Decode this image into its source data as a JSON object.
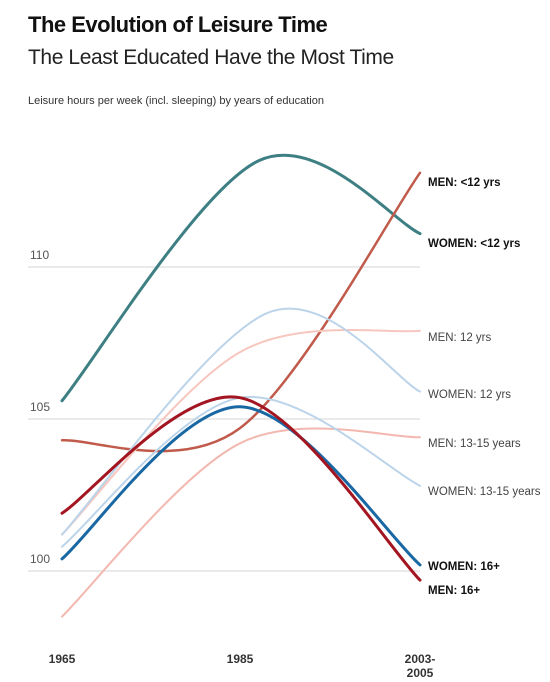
{
  "header": {
    "title": "The Evolution of Leisure Time",
    "subtitle": "The Least Educated Have the Most Time",
    "ylabel": "Leisure hours per week (incl. sleeping) by years of education"
  },
  "chart_data": {
    "type": "line",
    "title": "The Evolution of Leisure Time",
    "subtitle": "The Least Educated Have the Most Time",
    "ylabel": "Leisure hours per week (incl. sleeping) by years of education",
    "categories": [
      "1965",
      "1985",
      "2003-2005"
    ],
    "x_tick_labels": [
      [
        "1965"
      ],
      [
        "1985"
      ],
      [
        "2003-",
        "2005"
      ]
    ],
    "ylim": [
      98,
      115
    ],
    "yticks": [
      100,
      105,
      110
    ],
    "grid": true,
    "series": [
      {
        "name": "WOMEN: <12 yrs",
        "values": [
          105.6,
          113.4,
          111.1
        ],
        "peak": [
          1987,
          113.5
        ],
        "color": "#3d7f83",
        "width": 3,
        "bold": true
      },
      {
        "name": "MEN: <12 yrs",
        "values": [
          104.3,
          104.7,
          113.1
        ],
        "color": "#c05a4a",
        "width": 2.5,
        "bold": true
      },
      {
        "name": "MEN: 12 yrs",
        "values": [
          101.2,
          107.2,
          107.9
        ],
        "color": "#f7c6be",
        "width": 2,
        "bold": false
      },
      {
        "name": "WOMEN: 12 yrs",
        "values": [
          101.2,
          108.2,
          105.9
        ],
        "peak": [
          1988,
          108.5
        ],
        "color": "#bcd4ea",
        "width": 2,
        "bold": false
      },
      {
        "name": "MEN: 13-15 years",
        "values": [
          98.5,
          104.2,
          104.4
        ],
        "color": "#f2b8b0",
        "width": 2,
        "bold": false
      },
      {
        "name": "WOMEN: 13-15 years",
        "values": [
          100.8,
          105.7,
          102.8
        ],
        "color": "#bcd4ea",
        "width": 2,
        "bold": false
      },
      {
        "name": "WOMEN: 16+",
        "values": [
          100.4,
          105.4,
          100.2
        ],
        "color": "#1a68a3",
        "width": 3,
        "bold": true
      },
      {
        "name": "MEN: 16+",
        "values": [
          101.9,
          105.7,
          99.7
        ],
        "color": "#a31520",
        "width": 3,
        "bold": true
      }
    ]
  }
}
